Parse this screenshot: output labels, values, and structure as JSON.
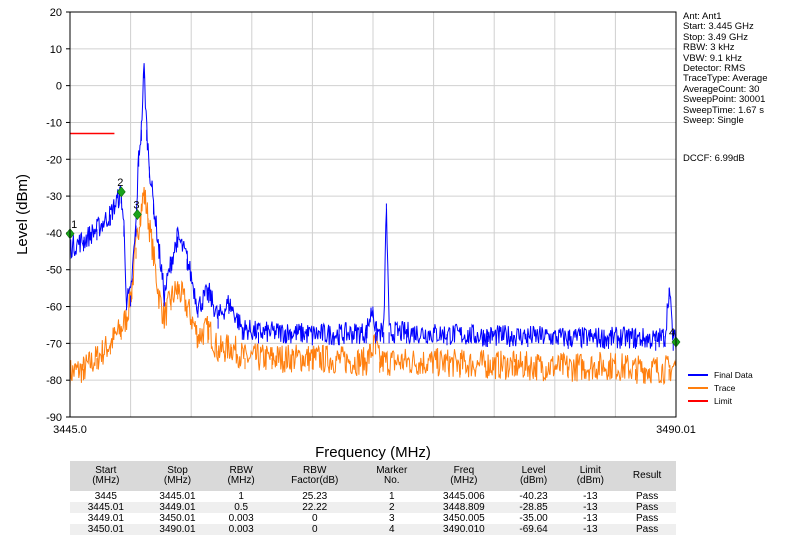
{
  "chart_data": {
    "type": "line",
    "xlabel": "Frequency (MHz)",
    "ylabel": "Level (dBm)",
    "xlim": [
      3445.0,
      3490.01
    ],
    "ylim": [
      -90,
      20
    ],
    "y_ticks": [
      20,
      10,
      0,
      -10,
      -20,
      -30,
      -40,
      -50,
      -60,
      -70,
      -80,
      -90
    ],
    "x_tick_labels": [
      "3445.0",
      "3490.01"
    ],
    "grid": true,
    "legend_position": "bottom-right",
    "series": [
      {
        "name": "Final Data",
        "color": "#0000ff",
        "points": [
          [
            3445.0,
            -44
          ],
          [
            3446.0,
            -42
          ],
          [
            3447.0,
            -39
          ],
          [
            3448.0,
            -35
          ],
          [
            3448.8,
            -29
          ],
          [
            3449.0,
            -38
          ],
          [
            3449.2,
            -58
          ],
          [
            3449.5,
            -57
          ],
          [
            3449.9,
            -38
          ],
          [
            3450.1,
            -19
          ],
          [
            3450.3,
            -12
          ],
          [
            3450.5,
            5
          ],
          [
            3450.7,
            -12
          ],
          [
            3450.9,
            -22
          ],
          [
            3451.2,
            -32
          ],
          [
            3451.6,
            -44
          ],
          [
            3452.0,
            -57
          ],
          [
            3452.5,
            -48
          ],
          [
            3453.0,
            -41
          ],
          [
            3453.7,
            -47
          ],
          [
            3454.5,
            -60
          ],
          [
            3455.3,
            -56
          ],
          [
            3456.0,
            -63
          ],
          [
            3456.8,
            -59
          ],
          [
            3457.8,
            -66
          ],
          [
            3459.0,
            -67
          ],
          [
            3461.0,
            -67
          ],
          [
            3463.0,
            -67.5
          ],
          [
            3465.0,
            -67.5
          ],
          [
            3467.0,
            -67
          ],
          [
            3467.5,
            -60
          ],
          [
            3467.7,
            -67
          ],
          [
            3468.3,
            -67
          ],
          [
            3468.5,
            -32
          ],
          [
            3468.7,
            -67
          ],
          [
            3470.0,
            -67
          ],
          [
            3473.0,
            -67.5
          ],
          [
            3476.0,
            -68
          ],
          [
            3479.0,
            -68
          ],
          [
            3482.0,
            -68.5
          ],
          [
            3485.0,
            -68.5
          ],
          [
            3487.0,
            -68.5
          ],
          [
            3488.5,
            -69
          ],
          [
            3489.2,
            -68
          ],
          [
            3489.5,
            -55
          ],
          [
            3489.8,
            -69
          ],
          [
            3490.01,
            -69
          ]
        ]
      },
      {
        "name": "Trace",
        "color": "#ff7f0e",
        "points": [
          [
            3445.0,
            -78
          ],
          [
            3446.0,
            -77
          ],
          [
            3447.0,
            -74
          ],
          [
            3448.0,
            -70
          ],
          [
            3448.8,
            -66
          ],
          [
            3449.2,
            -63
          ],
          [
            3449.6,
            -55
          ],
          [
            3449.9,
            -44
          ],
          [
            3450.2,
            -35
          ],
          [
            3450.5,
            -29
          ],
          [
            3450.8,
            -36
          ],
          [
            3451.2,
            -46
          ],
          [
            3451.6,
            -57
          ],
          [
            3452.0,
            -63
          ],
          [
            3452.5,
            -58
          ],
          [
            3453.0,
            -55
          ],
          [
            3453.7,
            -60
          ],
          [
            3454.5,
            -68
          ],
          [
            3455.3,
            -66
          ],
          [
            3456.0,
            -72
          ],
          [
            3457.0,
            -71
          ],
          [
            3458.0,
            -74
          ],
          [
            3460.0,
            -74
          ],
          [
            3463.0,
            -74
          ],
          [
            3467.0,
            -75
          ],
          [
            3467.7,
            -70
          ],
          [
            3468.0,
            -75
          ],
          [
            3471.0,
            -75
          ],
          [
            3474.0,
            -75.5
          ],
          [
            3478.0,
            -76
          ],
          [
            3482.0,
            -76.5
          ],
          [
            3485.0,
            -76
          ],
          [
            3487.0,
            -77
          ],
          [
            3489.5,
            -77
          ],
          [
            3490.01,
            -76
          ]
        ]
      },
      {
        "name": "Limit",
        "color": "#ff0000",
        "points": [
          [
            3445.0,
            -13
          ],
          [
            3448.3,
            -13
          ]
        ]
      }
    ],
    "markers": [
      {
        "label": "1",
        "x": 3445.006,
        "y": -40.23
      },
      {
        "label": "2",
        "x": 3448.809,
        "y": -28.85
      },
      {
        "label": "3",
        "x": 3450.005,
        "y": -35.0
      },
      {
        "label": "4",
        "x": 3490.01,
        "y": -69.64
      }
    ]
  },
  "info_panel": [
    "Ant: Ant1",
    "Start: 3.445 GHz",
    "Stop: 3.49 GHz",
    "RBW: 3 kHz",
    "VBW: 9.1 kHz",
    "Detector: RMS",
    "TraceType: Average",
    "AverageCount: 30",
    "SweepPoint: 30001",
    "SweepTime: 1.67 s",
    "Sweep: Single"
  ],
  "dccf": "DCCF: 6.99dB",
  "table": {
    "headers": [
      "Start\n(MHz)",
      "Stop\n(MHz)",
      "RBW\n(MHz)",
      "RBW\nFactor(dB)",
      "Marker\nNo.",
      "Freq\n(MHz)",
      "Level\n(dBm)",
      "Limit\n(dBm)",
      "Result"
    ],
    "rows": [
      [
        "3445",
        "3445.01",
        "1",
        "25.23",
        "1",
        "3445.006",
        "-40.23",
        "-13",
        "Pass"
      ],
      [
        "3445.01",
        "3449.01",
        "0.5",
        "22.22",
        "2",
        "3448.809",
        "-28.85",
        "-13",
        "Pass"
      ],
      [
        "3449.01",
        "3450.01",
        "0.003",
        "0",
        "3",
        "3450.005",
        "-35.00",
        "-13",
        "Pass"
      ],
      [
        "3450.01",
        "3490.01",
        "0.003",
        "0",
        "4",
        "3490.010",
        "-69.64",
        "-13",
        "Pass"
      ]
    ]
  }
}
